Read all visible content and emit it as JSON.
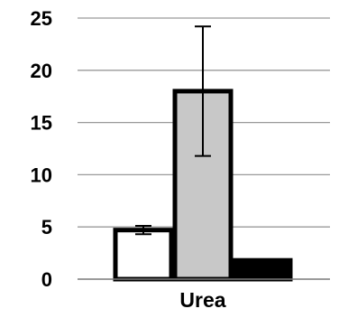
{
  "chart_data": {
    "type": "bar",
    "categories": [
      "Urea"
    ],
    "series": [
      {
        "values": [
          4.7
        ],
        "error": [
          0.4
        ],
        "color": "#ffffff"
      },
      {
        "values": [
          18.0
        ],
        "error": [
          6.2
        ],
        "color": "#c8c8c8"
      },
      {
        "values": [
          1.8
        ],
        "error": [
          0
        ],
        "color": "#000000"
      }
    ],
    "ylim": [
      0,
      25
    ],
    "yticks": [
      "0",
      "5",
      "10",
      "15",
      "20",
      "25"
    ],
    "grid": true,
    "legend": "none",
    "title": "",
    "xlabel": "",
    "ylabel": ""
  }
}
